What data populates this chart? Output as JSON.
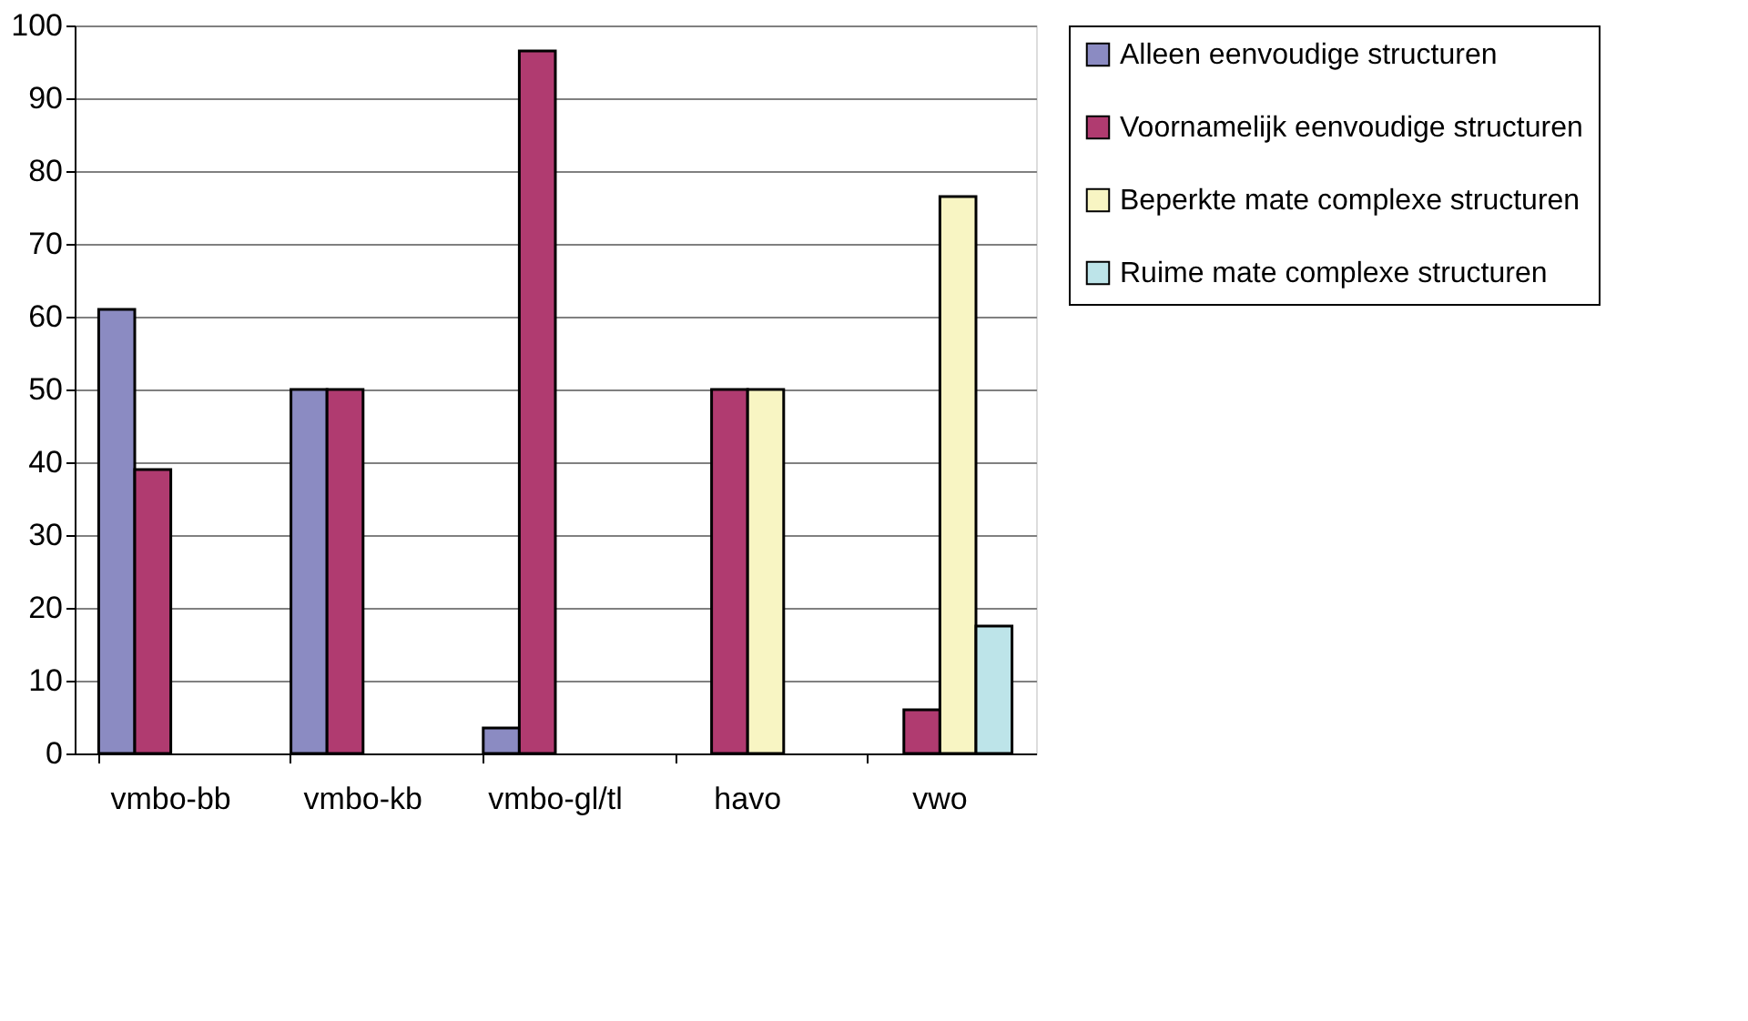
{
  "chart_data": {
    "type": "bar",
    "categories": [
      "vmbo-bb",
      "vmbo-kb",
      "vmbo-gl/tl",
      "havo",
      "vwo"
    ],
    "series": [
      {
        "name": "Alleen eenvoudige structuren",
        "color": "#8b8bc2",
        "values": [
          61,
          50,
          3.5,
          null,
          null
        ]
      },
      {
        "name": "Voornamelijk eenvoudige structuren",
        "color": "#b03b70",
        "values": [
          39,
          50,
          96.5,
          50,
          6
        ]
      },
      {
        "name": "Beperkte mate complexe structuren",
        "color": "#f8f5c3",
        "values": [
          null,
          null,
          null,
          50,
          76.5
        ]
      },
      {
        "name": "Ruime mate complexe structuren",
        "color": "#bde4e9",
        "values": [
          null,
          null,
          null,
          null,
          17.5
        ]
      }
    ],
    "ylim": [
      0,
      100
    ],
    "yticks": [
      0,
      10,
      20,
      30,
      40,
      50,
      60,
      70,
      80,
      90,
      100
    ],
    "grid": "y",
    "legend": "right"
  }
}
